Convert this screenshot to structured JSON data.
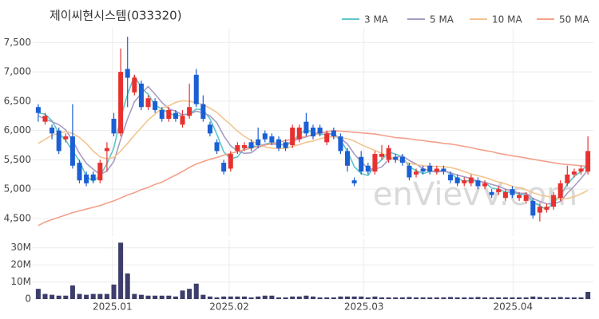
{
  "chart_data": {
    "type": "candlestick",
    "title": "제이씨현시스템(033320)",
    "watermark": "enVievV.com",
    "up_color": "#e8312f",
    "down_color": "#1b5fd4",
    "legend": "top-right",
    "grid": true,
    "xlim": [
      -0.8,
      80.8
    ],
    "xticks": [
      {
        "value": 10.8,
        "label": "2025.01"
      },
      {
        "value": 27.8,
        "label": "2025.02"
      },
      {
        "value": 47.4,
        "label": "2025.03"
      },
      {
        "value": 69.1,
        "label": "2025.04"
      }
    ],
    "ylim": [
      4200,
      7750
    ],
    "yticks": [
      {
        "value": 4500,
        "label": "4,500"
      },
      {
        "value": 5000,
        "label": "5,000"
      },
      {
        "value": 5500,
        "label": "5,500"
      },
      {
        "value": 6000,
        "label": "6,000"
      },
      {
        "value": 6500,
        "label": "6,500"
      },
      {
        "value": 7000,
        "label": "7,000"
      },
      {
        "value": 7500,
        "label": "7,500"
      }
    ],
    "open": [
      6400,
      6150,
      6050,
      6000,
      5850,
      5900,
      5450,
      5250,
      5250,
      5150,
      5650,
      6200,
      5950,
      7050,
      6650,
      6800,
      6400,
      6500,
      6350,
      6200,
      6300,
      6100,
      6250,
      6950,
      6450,
      6100,
      5800,
      5450,
      5350,
      5650,
      5700,
      5800,
      5850,
      5950,
      5900,
      5850,
      5800,
      5750,
      5850,
      6150,
      6050,
      6050,
      5800,
      6000,
      5900,
      5650,
      5150,
      5550,
      5400,
      5300,
      5550,
      5500,
      5550,
      5550,
      5400,
      5250,
      5350,
      5400,
      5300,
      5350,
      5250,
      5200,
      5100,
      5100,
      5150,
      5050,
      4950,
      4950,
      4850,
      5000,
      4850,
      4800,
      4800,
      4600,
      4650,
      4700,
      4850,
      5100,
      5250,
      5300,
      5300
    ],
    "high": [
      6450,
      6300,
      6100,
      6050,
      5950,
      6450,
      5500,
      5300,
      5300,
      5500,
      5800,
      6300,
      7400,
      7600,
      6950,
      6850,
      6600,
      6550,
      6400,
      6400,
      6350,
      6350,
      6800,
      7050,
      6600,
      6150,
      5850,
      5500,
      5650,
      5800,
      5800,
      5850,
      6050,
      6000,
      5950,
      5900,
      5850,
      6100,
      6100,
      6300,
      6100,
      6100,
      6000,
      6050,
      5950,
      5700,
      5200,
      5650,
      5450,
      5650,
      5750,
      5750,
      5600,
      5600,
      5450,
      5350,
      5400,
      5450,
      5400,
      5400,
      5300,
      5250,
      5200,
      5250,
      5200,
      5150,
      5000,
      5050,
      5000,
      5050,
      4950,
      4950,
      4850,
      4750,
      4750,
      4950,
      5150,
      5400,
      5350,
      5400,
      5900
    ],
    "low": [
      6150,
      6100,
      5850,
      5600,
      5800,
      5350,
      5100,
      5050,
      5100,
      5100,
      5300,
      5900,
      5900,
      6400,
      6600,
      6350,
      6350,
      6300,
      6150,
      6150,
      6150,
      6050,
      6200,
      6400,
      6150,
      5900,
      5600,
      5250,
      5300,
      5600,
      5650,
      5650,
      5700,
      5800,
      5750,
      5650,
      5650,
      5700,
      5800,
      5900,
      5850,
      5900,
      5750,
      5850,
      5600,
      5300,
      5050,
      5250,
      5250,
      5250,
      5500,
      5450,
      5450,
      5400,
      5150,
      5200,
      5250,
      5250,
      5250,
      5250,
      5100,
      5050,
      5050,
      5050,
      5000,
      5000,
      4850,
      4900,
      4800,
      4850,
      4800,
      4750,
      4500,
      4450,
      4600,
      4650,
      4800,
      5050,
      5200,
      5250,
      5250
    ],
    "close": [
      6300,
      6250,
      5950,
      5650,
      5900,
      5400,
      5150,
      5100,
      5150,
      5450,
      5700,
      5950,
      7000,
      6900,
      6900,
      6400,
      6550,
      6350,
      6200,
      6350,
      6200,
      6250,
      6400,
      6450,
      6200,
      5950,
      5650,
      5300,
      5600,
      5750,
      5750,
      5700,
      5750,
      5850,
      5800,
      5700,
      5700,
      6050,
      6050,
      5950,
      5900,
      5950,
      5950,
      5900,
      5650,
      5400,
      5100,
      5300,
      5300,
      5600,
      5600,
      5700,
      5500,
      5450,
      5200,
      5300,
      5300,
      5300,
      5350,
      5300,
      5150,
      5100,
      5150,
      5200,
      5050,
      5100,
      4900,
      5000,
      4950,
      4900,
      4900,
      4900,
      4550,
      4700,
      4700,
      4900,
      5100,
      5250,
      5300,
      5350,
      5650
    ],
    "series": [
      {
        "name": "3 MA",
        "color": "#5cc6c8",
        "values": [
          6300,
          6280,
          6167,
          5950,
          5833,
          5650,
          5483,
          5217,
          5133,
          5233,
          5433,
          5700,
          6217,
          6617,
          6933,
          6733,
          6617,
          6433,
          6367,
          6300,
          6250,
          6267,
          6283,
          6367,
          6350,
          6200,
          5933,
          5633,
          5517,
          5550,
          5700,
          5733,
          5733,
          5767,
          5800,
          5783,
          5733,
          5817,
          5933,
          6017,
          5967,
          5933,
          5933,
          5933,
          5833,
          5650,
          5383,
          5267,
          5233,
          5400,
          5500,
          5633,
          5600,
          5550,
          5383,
          5317,
          5267,
          5300,
          5317,
          5317,
          5267,
          5183,
          5133,
          5150,
          5133,
          5117,
          5017,
          5000,
          4950,
          4950,
          4917,
          4900,
          4783,
          4717,
          4650,
          4767,
          4900,
          5083,
          5217,
          5300,
          5433
        ]
      },
      {
        "name": "5 MA",
        "color": "#a89cc4",
        "values": [
          6250,
          6200,
          6150,
          6100,
          6010,
          5830,
          5610,
          5440,
          5340,
          5250,
          5310,
          5470,
          5850,
          6200,
          6490,
          6630,
          6750,
          6620,
          6480,
          6370,
          6330,
          6270,
          6280,
          6330,
          6300,
          6250,
          6130,
          5910,
          5740,
          5650,
          5610,
          5620,
          5710,
          5760,
          5770,
          5760,
          5760,
          5820,
          5860,
          5890,
          5930,
          5980,
          5960,
          5930,
          5870,
          5770,
          5600,
          5470,
          5350,
          5340,
          5380,
          5500,
          5540,
          5570,
          5490,
          5430,
          5350,
          5310,
          5290,
          5310,
          5280,
          5240,
          5210,
          5180,
          5130,
          5120,
          5080,
          5050,
          5000,
          4970,
          4930,
          4930,
          4840,
          4790,
          4750,
          4750,
          4790,
          4930,
          5050,
          5180,
          5330
        ]
      },
      {
        "name": "10 MA",
        "color": "#f2c48e",
        "values": [
          5780,
          5850,
          5920,
          5950,
          5980,
          5950,
          5880,
          5780,
          5650,
          5550,
          5520,
          5540,
          5650,
          5780,
          5920,
          6050,
          6180,
          6280,
          6380,
          6420,
          6480,
          6510,
          6500,
          6480,
          6440,
          6380,
          6310,
          6200,
          6100,
          5990,
          5900,
          5830,
          5760,
          5720,
          5700,
          5690,
          5700,
          5730,
          5760,
          5800,
          5820,
          5860,
          5890,
          5890,
          5880,
          5860,
          5820,
          5760,
          5710,
          5660,
          5610,
          5560,
          5510,
          5480,
          5440,
          5420,
          5400,
          5390,
          5390,
          5380,
          5370,
          5340,
          5300,
          5260,
          5230,
          5200,
          5160,
          5120,
          5090,
          5050,
          5020,
          4990,
          4940,
          4900,
          4880,
          4850,
          4830,
          4840,
          4870,
          4920,
          4980
        ]
      },
      {
        "name": "50 MA",
        "color": "#f4a08a",
        "values": [
          4380,
          4440,
          4480,
          4520,
          4560,
          4600,
          4630,
          4660,
          4690,
          4720,
          4760,
          4800,
          4850,
          4900,
          4940,
          4990,
          5030,
          5080,
          5120,
          5180,
          5240,
          5300,
          5370,
          5430,
          5470,
          5510,
          5540,
          5580,
          5610,
          5640,
          5670,
          5700,
          5730,
          5750,
          5780,
          5800,
          5830,
          5850,
          5880,
          5900,
          5930,
          5950,
          5980,
          6000,
          5990,
          5980,
          5970,
          5960,
          5950,
          5940,
          5920,
          5900,
          5880,
          5870,
          5860,
          5840,
          5830,
          5810,
          5800,
          5780,
          5770,
          5750,
          5730,
          5710,
          5680,
          5660,
          5640,
          5610,
          5590,
          5570,
          5550,
          5530,
          5510,
          5490,
          5470,
          5450,
          5430,
          5420,
          5410,
          5400,
          5390
        ]
      }
    ],
    "volume": {
      "color": "#3d3d6b",
      "ylim": [
        0,
        35000000
      ],
      "yticks": [
        0,
        {
          "value": 10000000,
          "label": "10M"
        },
        {
          "value": 20000000,
          "label": "20M"
        },
        {
          "value": 30000000,
          "label": "30M"
        }
      ],
      "values": [
        6000000,
        3000000,
        2500000,
        2000000,
        2000000,
        8000000,
        3000000,
        2500000,
        3000000,
        3000000,
        3000000,
        8500000,
        33000000,
        15000000,
        3000000,
        2500000,
        2000000,
        2000000,
        2000000,
        2000000,
        1500000,
        5000000,
        6000000,
        9000000,
        2500000,
        1500000,
        1000000,
        1500000,
        1500000,
        1500000,
        1500000,
        1000000,
        1500000,
        2000000,
        2000000,
        1000000,
        1000000,
        1500000,
        1500000,
        2000000,
        1500000,
        1000000,
        1000000,
        1000000,
        1500000,
        1500000,
        1500000,
        1500000,
        1000000,
        1500000,
        1000000,
        1000000,
        1000000,
        1000000,
        1200000,
        1000000,
        1000000,
        1000000,
        1000000,
        1000000,
        1200000,
        1000000,
        1000000,
        1000000,
        1200000,
        1000000,
        1000000,
        1000000,
        1000000,
        1000000,
        1000000,
        1000000,
        1500000,
        1200000,
        1000000,
        1000000,
        1200000,
        1000000,
        1000000,
        1000000,
        4200000
      ]
    }
  }
}
